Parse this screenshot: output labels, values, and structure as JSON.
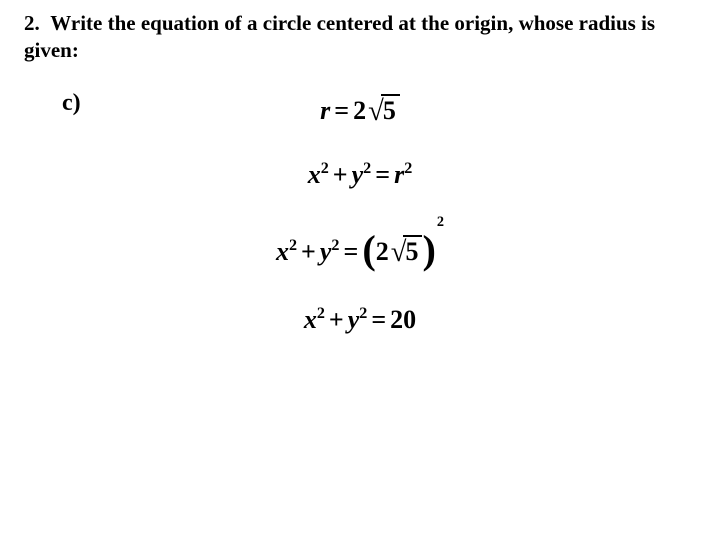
{
  "background_color": "#ffffff",
  "text_color": "#000000",
  "prompt": {
    "number": "2.",
    "text": "Write the equation of a circle centered at the origin, whose radius is given:",
    "font_size_pt": 16,
    "font_weight": "bold"
  },
  "subpart_label": "c)",
  "equations": {
    "font_family": "Times New Roman",
    "font_style": "italic",
    "font_weight": "bold",
    "font_size_pt": 20,
    "line1": {
      "type": "equation",
      "lhs_var": "r",
      "rhs_coef": "2",
      "rhs_radicand": "5",
      "display": "r = 2√5"
    },
    "line2": {
      "type": "equation",
      "lhs": "x^2 + y^2",
      "rhs": "r^2",
      "display": "x² + y² = r²"
    },
    "line3": {
      "type": "equation",
      "lhs": "x^2 + y^2",
      "rhs_inner_coef": "2",
      "rhs_inner_radicand": "5",
      "rhs_outer_exponent": "2",
      "display": "x² + y² = (2√5)²"
    },
    "line4": {
      "type": "equation",
      "lhs": "x^2 + y^2",
      "rhs": "20",
      "display": "x² + y² = 20"
    }
  }
}
